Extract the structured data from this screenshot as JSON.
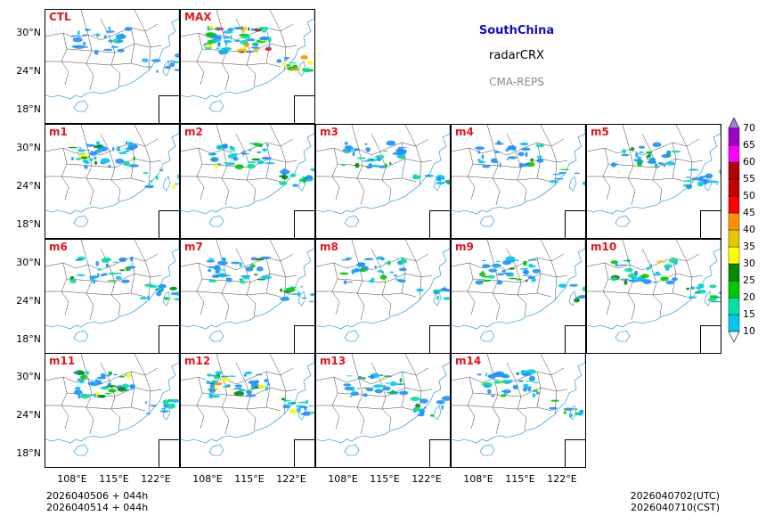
{
  "header": {
    "region": "SouthChina",
    "variable": "radarCRX",
    "system": "CMA-REPS"
  },
  "axes": {
    "lat_ticks": [
      "30°N",
      "24°N",
      "18°N"
    ],
    "lon_ticks": [
      "108°E",
      "115°E",
      "122°E"
    ]
  },
  "panels": [
    {
      "id": "CTL",
      "intensity": 0.25
    },
    {
      "id": "MAX",
      "intensity": 1.0
    },
    {
      "id": "m1",
      "intensity": 0.55
    },
    {
      "id": "m2",
      "intensity": 0.5
    },
    {
      "id": "m3",
      "intensity": 0.4
    },
    {
      "id": "m4",
      "intensity": 0.3
    },
    {
      "id": "m5",
      "intensity": 0.45
    },
    {
      "id": "m6",
      "intensity": 0.4
    },
    {
      "id": "m7",
      "intensity": 0.45
    },
    {
      "id": "m8",
      "intensity": 0.4
    },
    {
      "id": "m9",
      "intensity": 0.45
    },
    {
      "id": "m10",
      "intensity": 0.5
    },
    {
      "id": "m11",
      "intensity": 0.6
    },
    {
      "id": "m12",
      "intensity": 0.65
    },
    {
      "id": "m13",
      "intensity": 0.45
    },
    {
      "id": "m14",
      "intensity": 0.55
    }
  ],
  "colorbar": {
    "levels": [
      "10",
      "15",
      "20",
      "25",
      "30",
      "35",
      "40",
      "45",
      "50",
      "55",
      "60",
      "65",
      "70"
    ],
    "colors": [
      "#1e90ff",
      "#00c8f0",
      "#00e0a0",
      "#00c800",
      "#008c00",
      "#ffff00",
      "#e6c800",
      "#ff9000",
      "#ff0000",
      "#c80000",
      "#b40000",
      "#ff00ff",
      "#9c00c8",
      "#a080d8"
    ]
  },
  "footer": {
    "init_utc": "2026040506  +  044h",
    "init_cst": "2026040514  +  044h",
    "valid_utc": "2026040702(UTC)",
    "valid_cst": "2026040710(CST)"
  }
}
